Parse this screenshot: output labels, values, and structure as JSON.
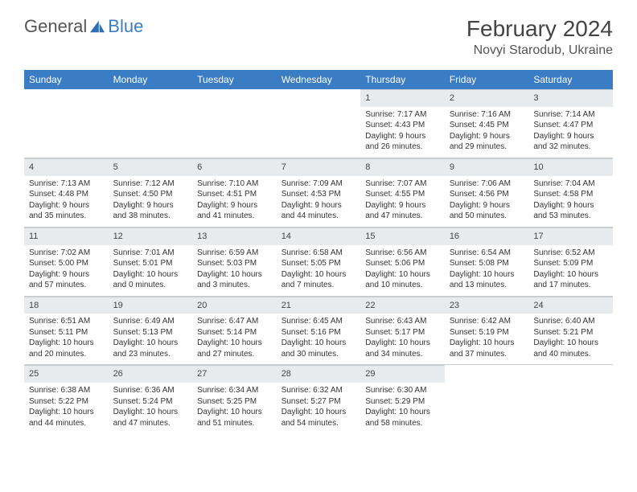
{
  "brand": {
    "part1": "General",
    "part2": "Blue"
  },
  "title": "February 2024",
  "location": "Novyi Starodub, Ukraine",
  "colors": {
    "header_bg": "#3b7dc4",
    "header_fg": "#ffffff",
    "daynum_bg": "#e8ebee",
    "border": "#c8cdd2",
    "text": "#333333",
    "page_bg": "#ffffff"
  },
  "typography": {
    "title_fontsize": 28,
    "location_fontsize": 16,
    "dayheader_fontsize": 12,
    "cell_fontsize": 10
  },
  "day_headers": [
    "Sunday",
    "Monday",
    "Tuesday",
    "Wednesday",
    "Thursday",
    "Friday",
    "Saturday"
  ],
  "weeks": [
    [
      null,
      null,
      null,
      null,
      {
        "n": "1",
        "sr": "Sunrise: 7:17 AM",
        "ss": "Sunset: 4:43 PM",
        "d1": "Daylight: 9 hours",
        "d2": "and 26 minutes."
      },
      {
        "n": "2",
        "sr": "Sunrise: 7:16 AM",
        "ss": "Sunset: 4:45 PM",
        "d1": "Daylight: 9 hours",
        "d2": "and 29 minutes."
      },
      {
        "n": "3",
        "sr": "Sunrise: 7:14 AM",
        "ss": "Sunset: 4:47 PM",
        "d1": "Daylight: 9 hours",
        "d2": "and 32 minutes."
      }
    ],
    [
      {
        "n": "4",
        "sr": "Sunrise: 7:13 AM",
        "ss": "Sunset: 4:48 PM",
        "d1": "Daylight: 9 hours",
        "d2": "and 35 minutes."
      },
      {
        "n": "5",
        "sr": "Sunrise: 7:12 AM",
        "ss": "Sunset: 4:50 PM",
        "d1": "Daylight: 9 hours",
        "d2": "and 38 minutes."
      },
      {
        "n": "6",
        "sr": "Sunrise: 7:10 AM",
        "ss": "Sunset: 4:51 PM",
        "d1": "Daylight: 9 hours",
        "d2": "and 41 minutes."
      },
      {
        "n": "7",
        "sr": "Sunrise: 7:09 AM",
        "ss": "Sunset: 4:53 PM",
        "d1": "Daylight: 9 hours",
        "d2": "and 44 minutes."
      },
      {
        "n": "8",
        "sr": "Sunrise: 7:07 AM",
        "ss": "Sunset: 4:55 PM",
        "d1": "Daylight: 9 hours",
        "d2": "and 47 minutes."
      },
      {
        "n": "9",
        "sr": "Sunrise: 7:06 AM",
        "ss": "Sunset: 4:56 PM",
        "d1": "Daylight: 9 hours",
        "d2": "and 50 minutes."
      },
      {
        "n": "10",
        "sr": "Sunrise: 7:04 AM",
        "ss": "Sunset: 4:58 PM",
        "d1": "Daylight: 9 hours",
        "d2": "and 53 minutes."
      }
    ],
    [
      {
        "n": "11",
        "sr": "Sunrise: 7:02 AM",
        "ss": "Sunset: 5:00 PM",
        "d1": "Daylight: 9 hours",
        "d2": "and 57 minutes."
      },
      {
        "n": "12",
        "sr": "Sunrise: 7:01 AM",
        "ss": "Sunset: 5:01 PM",
        "d1": "Daylight: 10 hours",
        "d2": "and 0 minutes."
      },
      {
        "n": "13",
        "sr": "Sunrise: 6:59 AM",
        "ss": "Sunset: 5:03 PM",
        "d1": "Daylight: 10 hours",
        "d2": "and 3 minutes."
      },
      {
        "n": "14",
        "sr": "Sunrise: 6:58 AM",
        "ss": "Sunset: 5:05 PM",
        "d1": "Daylight: 10 hours",
        "d2": "and 7 minutes."
      },
      {
        "n": "15",
        "sr": "Sunrise: 6:56 AM",
        "ss": "Sunset: 5:06 PM",
        "d1": "Daylight: 10 hours",
        "d2": "and 10 minutes."
      },
      {
        "n": "16",
        "sr": "Sunrise: 6:54 AM",
        "ss": "Sunset: 5:08 PM",
        "d1": "Daylight: 10 hours",
        "d2": "and 13 minutes."
      },
      {
        "n": "17",
        "sr": "Sunrise: 6:52 AM",
        "ss": "Sunset: 5:09 PM",
        "d1": "Daylight: 10 hours",
        "d2": "and 17 minutes."
      }
    ],
    [
      {
        "n": "18",
        "sr": "Sunrise: 6:51 AM",
        "ss": "Sunset: 5:11 PM",
        "d1": "Daylight: 10 hours",
        "d2": "and 20 minutes."
      },
      {
        "n": "19",
        "sr": "Sunrise: 6:49 AM",
        "ss": "Sunset: 5:13 PM",
        "d1": "Daylight: 10 hours",
        "d2": "and 23 minutes."
      },
      {
        "n": "20",
        "sr": "Sunrise: 6:47 AM",
        "ss": "Sunset: 5:14 PM",
        "d1": "Daylight: 10 hours",
        "d2": "and 27 minutes."
      },
      {
        "n": "21",
        "sr": "Sunrise: 6:45 AM",
        "ss": "Sunset: 5:16 PM",
        "d1": "Daylight: 10 hours",
        "d2": "and 30 minutes."
      },
      {
        "n": "22",
        "sr": "Sunrise: 6:43 AM",
        "ss": "Sunset: 5:17 PM",
        "d1": "Daylight: 10 hours",
        "d2": "and 34 minutes."
      },
      {
        "n": "23",
        "sr": "Sunrise: 6:42 AM",
        "ss": "Sunset: 5:19 PM",
        "d1": "Daylight: 10 hours",
        "d2": "and 37 minutes."
      },
      {
        "n": "24",
        "sr": "Sunrise: 6:40 AM",
        "ss": "Sunset: 5:21 PM",
        "d1": "Daylight: 10 hours",
        "d2": "and 40 minutes."
      }
    ],
    [
      {
        "n": "25",
        "sr": "Sunrise: 6:38 AM",
        "ss": "Sunset: 5:22 PM",
        "d1": "Daylight: 10 hours",
        "d2": "and 44 minutes."
      },
      {
        "n": "26",
        "sr": "Sunrise: 6:36 AM",
        "ss": "Sunset: 5:24 PM",
        "d1": "Daylight: 10 hours",
        "d2": "and 47 minutes."
      },
      {
        "n": "27",
        "sr": "Sunrise: 6:34 AM",
        "ss": "Sunset: 5:25 PM",
        "d1": "Daylight: 10 hours",
        "d2": "and 51 minutes."
      },
      {
        "n": "28",
        "sr": "Sunrise: 6:32 AM",
        "ss": "Sunset: 5:27 PM",
        "d1": "Daylight: 10 hours",
        "d2": "and 54 minutes."
      },
      {
        "n": "29",
        "sr": "Sunrise: 6:30 AM",
        "ss": "Sunset: 5:29 PM",
        "d1": "Daylight: 10 hours",
        "d2": "and 58 minutes."
      },
      null,
      null
    ]
  ]
}
